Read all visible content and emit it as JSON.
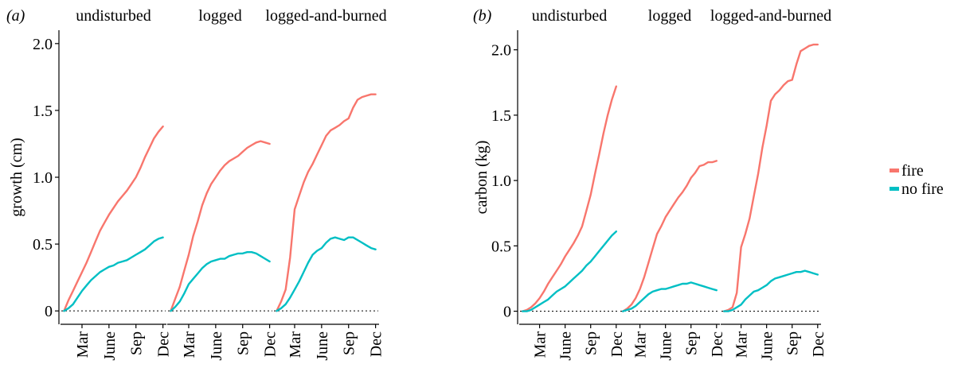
{
  "colors": {
    "fire": "#F8766D",
    "no_fire": "#00BFC4",
    "axis": "#000000",
    "zero_line": "#000000"
  },
  "legend": {
    "placement": "right",
    "items": [
      {
        "label": "fire",
        "color": "#F8766D"
      },
      {
        "label": "no fire",
        "color": "#00BFC4"
      }
    ]
  },
  "chart_data": [
    {
      "type": "line",
      "panel_tag": "(a)",
      "ylabel": "growth (cm)",
      "ylim": [
        -0.1,
        2.1
      ],
      "yticks": [
        0,
        0.5,
        1.0,
        1.5,
        2.0
      ],
      "ytick_labels": [
        "0",
        "0.5",
        "1.0",
        "1.5",
        "2.0"
      ],
      "xlim": [
        0.7,
        12.3
      ],
      "xticks": [
        3,
        6,
        9,
        12
      ],
      "xtick_labels": [
        "Mar",
        "June",
        "Sep",
        "Dec"
      ],
      "reference_line": {
        "y": 0,
        "style": "dotted"
      },
      "facets": [
        {
          "title": "undisturbed",
          "series": [
            {
              "name": "fire",
              "x": [
                1,
                1.5,
                2,
                2.5,
                3,
                3.5,
                4,
                4.5,
                5,
                5.5,
                6,
                6.5,
                7,
                7.5,
                8,
                8.5,
                9,
                9.5,
                10,
                10.5,
                11,
                11.5,
                12
              ],
              "y": [
                0,
                0.08,
                0.15,
                0.22,
                0.29,
                0.36,
                0.44,
                0.52,
                0.6,
                0.66,
                0.72,
                0.77,
                0.82,
                0.86,
                0.9,
                0.95,
                1.0,
                1.07,
                1.15,
                1.22,
                1.29,
                1.34,
                1.38
              ]
            },
            {
              "name": "no fire",
              "x": [
                1,
                1.5,
                2,
                2.5,
                3,
                3.5,
                4,
                4.5,
                5,
                5.5,
                6,
                6.5,
                7,
                7.5,
                8,
                8.5,
                9,
                9.5,
                10,
                10.5,
                11,
                11.5,
                12
              ],
              "y": [
                0,
                0.02,
                0.05,
                0.1,
                0.15,
                0.19,
                0.23,
                0.26,
                0.29,
                0.31,
                0.33,
                0.34,
                0.36,
                0.37,
                0.38,
                0.4,
                0.42,
                0.44,
                0.46,
                0.49,
                0.52,
                0.54,
                0.55
              ]
            }
          ]
        },
        {
          "title": "logged",
          "series": [
            {
              "name": "fire",
              "x": [
                1,
                1.5,
                2,
                2.5,
                3,
                3.5,
                4,
                4.5,
                5,
                5.5,
                6,
                6.5,
                7,
                7.5,
                8,
                8.5,
                9,
                9.5,
                10,
                10.5,
                11,
                11.5,
                12
              ],
              "y": [
                0,
                0.09,
                0.18,
                0.3,
                0.42,
                0.56,
                0.67,
                0.79,
                0.88,
                0.95,
                1.0,
                1.05,
                1.09,
                1.12,
                1.14,
                1.16,
                1.19,
                1.22,
                1.24,
                1.26,
                1.27,
                1.26,
                1.25
              ]
            },
            {
              "name": "no fire",
              "x": [
                1,
                1.5,
                2,
                2.5,
                3,
                3.5,
                4,
                4.5,
                5,
                5.5,
                6,
                6.5,
                7,
                7.5,
                8,
                8.5,
                9,
                9.5,
                10,
                10.5,
                11,
                11.5,
                12
              ],
              "y": [
                0,
                0.03,
                0.07,
                0.13,
                0.2,
                0.24,
                0.28,
                0.32,
                0.35,
                0.37,
                0.38,
                0.39,
                0.39,
                0.41,
                0.42,
                0.43,
                0.43,
                0.44,
                0.44,
                0.43,
                0.41,
                0.39,
                0.37
              ]
            }
          ]
        },
        {
          "title": "logged-and-burned",
          "series": [
            {
              "name": "fire",
              "x": [
                1,
                1.5,
                2,
                2.5,
                3,
                3.5,
                4,
                4.5,
                5,
                5.5,
                6,
                6.5,
                7,
                7.5,
                8,
                8.5,
                9,
                9.5,
                10,
                10.5,
                11,
                11.5,
                12
              ],
              "y": [
                0,
                0.07,
                0.16,
                0.4,
                0.76,
                0.86,
                0.96,
                1.04,
                1.1,
                1.17,
                1.24,
                1.31,
                1.35,
                1.37,
                1.39,
                1.42,
                1.44,
                1.52,
                1.58,
                1.6,
                1.61,
                1.62,
                1.62
              ]
            },
            {
              "name": "no fire",
              "x": [
                1,
                1.5,
                2,
                2.5,
                3,
                3.5,
                4,
                4.5,
                5,
                5.5,
                6,
                6.5,
                7,
                7.5,
                8,
                8.5,
                9,
                9.5,
                10,
                10.5,
                11,
                11.5,
                12
              ],
              "y": [
                0,
                0.02,
                0.05,
                0.1,
                0.16,
                0.22,
                0.29,
                0.36,
                0.42,
                0.45,
                0.47,
                0.51,
                0.54,
                0.55,
                0.54,
                0.53,
                0.55,
                0.55,
                0.53,
                0.51,
                0.49,
                0.47,
                0.46
              ]
            }
          ]
        }
      ]
    },
    {
      "type": "line",
      "panel_tag": "(b)",
      "ylabel": "carbon (kg)",
      "ylim": [
        -0.1,
        2.15
      ],
      "yticks": [
        0,
        0.5,
        1.0,
        1.5,
        2.0
      ],
      "ytick_labels": [
        "0",
        "0.5",
        "1.0",
        "1.5",
        "2.0"
      ],
      "xlim": [
        0.7,
        12.3
      ],
      "xticks": [
        3,
        6,
        9,
        12
      ],
      "xtick_labels": [
        "Mar",
        "June",
        "Sep",
        "Dec"
      ],
      "reference_line": {
        "y": 0,
        "style": "dotted"
      },
      "facets": [
        {
          "title": "undisturbed",
          "series": [
            {
              "name": "fire",
              "x": [
                1,
                1.5,
                2,
                2.5,
                3,
                3.5,
                4,
                4.5,
                5,
                5.5,
                6,
                6.5,
                7,
                7.5,
                8,
                8.5,
                9,
                9.5,
                10,
                10.5,
                11,
                11.5,
                12
              ],
              "y": [
                0,
                0.01,
                0.03,
                0.06,
                0.1,
                0.15,
                0.21,
                0.26,
                0.31,
                0.36,
                0.42,
                0.47,
                0.52,
                0.58,
                0.65,
                0.77,
                0.89,
                1.05,
                1.2,
                1.36,
                1.5,
                1.62,
                1.72
              ]
            },
            {
              "name": "no fire",
              "x": [
                1,
                1.5,
                2,
                2.5,
                3,
                3.5,
                4,
                4.5,
                5,
                5.5,
                6,
                6.5,
                7,
                7.5,
                8,
                8.5,
                9,
                9.5,
                10,
                10.5,
                11,
                11.5,
                12
              ],
              "y": [
                0,
                0.0,
                0.01,
                0.03,
                0.05,
                0.07,
                0.09,
                0.12,
                0.15,
                0.17,
                0.19,
                0.22,
                0.25,
                0.28,
                0.31,
                0.35,
                0.38,
                0.42,
                0.46,
                0.5,
                0.54,
                0.58,
                0.61
              ]
            }
          ]
        },
        {
          "title": "logged",
          "series": [
            {
              "name": "fire",
              "x": [
                1,
                1.5,
                2,
                2.5,
                3,
                3.5,
                4,
                4.5,
                5,
                5.5,
                6,
                6.5,
                7,
                7.5,
                8,
                8.5,
                9,
                9.5,
                10,
                10.5,
                11,
                11.5,
                12
              ],
              "y": [
                0,
                0.02,
                0.05,
                0.1,
                0.17,
                0.26,
                0.37,
                0.48,
                0.59,
                0.65,
                0.72,
                0.77,
                0.82,
                0.87,
                0.91,
                0.96,
                1.02,
                1.06,
                1.11,
                1.12,
                1.14,
                1.14,
                1.15
              ]
            },
            {
              "name": "no fire",
              "x": [
                1,
                1.5,
                2,
                2.5,
                3,
                3.5,
                4,
                4.5,
                5,
                5.5,
                6,
                6.5,
                7,
                7.5,
                8,
                8.5,
                9,
                9.5,
                10,
                10.5,
                11,
                11.5,
                12
              ],
              "y": [
                0,
                0.01,
                0.02,
                0.04,
                0.07,
                0.1,
                0.13,
                0.15,
                0.16,
                0.17,
                0.17,
                0.18,
                0.19,
                0.2,
                0.21,
                0.21,
                0.22,
                0.21,
                0.2,
                0.19,
                0.18,
                0.17,
                0.16
              ]
            }
          ]
        },
        {
          "title": "logged-and-burned",
          "series": [
            {
              "name": "fire",
              "x": [
                1,
                1.5,
                2,
                2.5,
                3,
                3.5,
                4,
                4.5,
                5,
                5.5,
                6,
                6.5,
                7,
                7.5,
                8,
                8.5,
                9,
                9.5,
                10,
                10.5,
                11,
                11.5,
                12
              ],
              "y": [
                0,
                0.01,
                0.03,
                0.14,
                0.49,
                0.59,
                0.71,
                0.88,
                1.05,
                1.25,
                1.42,
                1.61,
                1.66,
                1.69,
                1.73,
                1.76,
                1.77,
                1.89,
                1.99,
                2.01,
                2.03,
                2.04,
                2.04
              ]
            },
            {
              "name": "no fire",
              "x": [
                1,
                1.5,
                2,
                2.5,
                3,
                3.5,
                4,
                4.5,
                5,
                5.5,
                6,
                6.5,
                7,
                7.5,
                8,
                8.5,
                9,
                9.5,
                10,
                10.5,
                11,
                11.5,
                12
              ],
              "y": [
                0,
                0.0,
                0.01,
                0.03,
                0.05,
                0.09,
                0.12,
                0.15,
                0.16,
                0.18,
                0.2,
                0.23,
                0.25,
                0.26,
                0.27,
                0.28,
                0.29,
                0.3,
                0.3,
                0.31,
                0.3,
                0.29,
                0.28
              ]
            }
          ]
        }
      ]
    }
  ]
}
